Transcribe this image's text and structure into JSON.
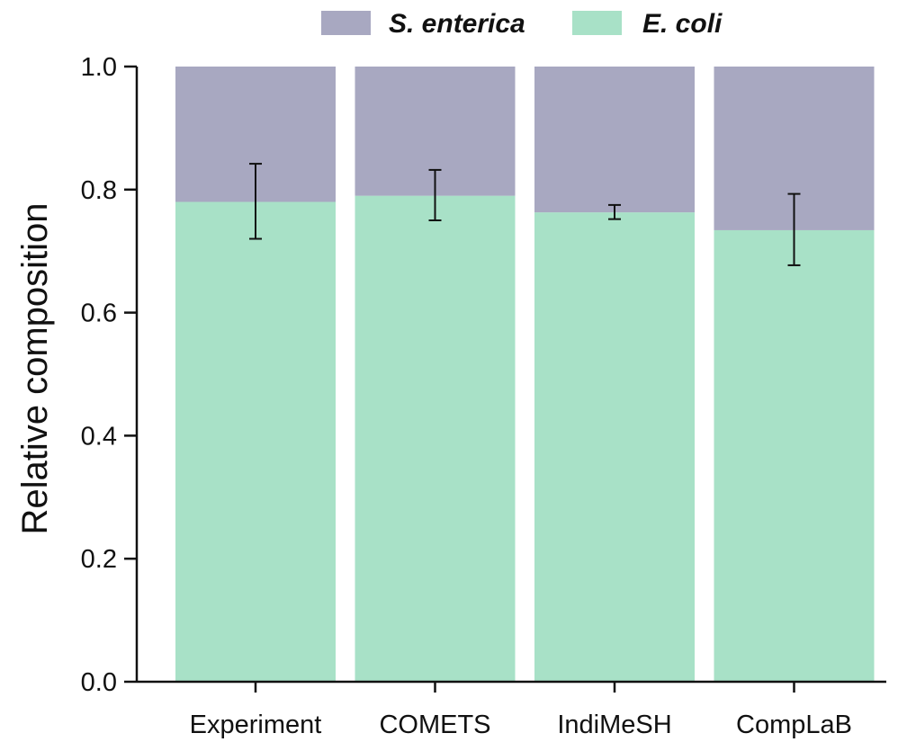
{
  "chart_data": {
    "type": "bar",
    "stacked": true,
    "categories": [
      "Experiment",
      "COMETS",
      "IndiMeSH",
      "CompLaB"
    ],
    "series": [
      {
        "name": "E. coli",
        "color": "#a8e1c7",
        "values": [
          0.78,
          0.79,
          0.763,
          0.734
        ],
        "error_low": [
          0.72,
          0.75,
          0.752,
          0.677
        ],
        "error_high": [
          0.842,
          0.832,
          0.775,
          0.793
        ]
      },
      {
        "name": "S. enterica",
        "color": "#a8a8c1",
        "values": [
          0.22,
          0.21,
          0.237,
          0.266
        ]
      }
    ],
    "legend_order": [
      "S. enterica",
      "E. coli"
    ],
    "legend_position": "top",
    "xlabel": "",
    "ylabel": "Relative composition",
    "ylim": [
      0,
      1
    ],
    "yticks": [
      "0.0",
      "0.2",
      "0.4",
      "0.6",
      "0.8",
      "1.0"
    ],
    "grid": false
  }
}
